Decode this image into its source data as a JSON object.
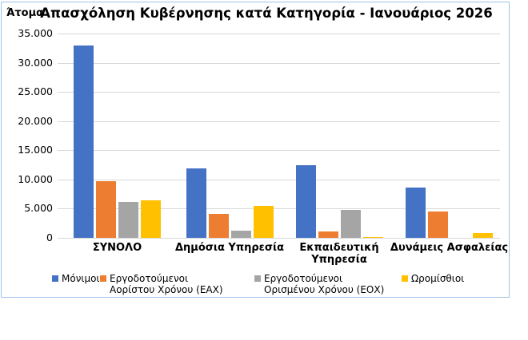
{
  "chart_data": {
    "type": "bar",
    "title": "Απασχόληση Κυβέρνησης κατά Κατηγορία - Ιανουάριος 2026",
    "y_axis_title": "Άτομα",
    "categories": [
      "ΣΥΝΟΛΟ",
      "Δημόσια Υπηρεσία",
      "Εκπαιδευτική Υπηρεσία",
      "Δυνάμεις Ασφαλείας"
    ],
    "categories_lines": [
      [
        "ΣΥΝΟΛΟ"
      ],
      [
        "Δημόσια Υπηρεσία"
      ],
      [
        "Εκπαιδευτική",
        "Υπηρεσία"
      ],
      [
        "Δυνάμεις Ασφαλείας"
      ]
    ],
    "series": [
      {
        "name": "Μόνιμοι",
        "label_lines": [
          "Μόνιμοι"
        ],
        "color": "#4472C4",
        "values": [
          33000,
          11900,
          12500,
          8600
        ]
      },
      {
        "name": "Εργοδοτούμενοι Αορίστου Χρόνου (ΕΑΧ)",
        "label_lines": [
          "Εργοδοτούμενοι",
          "Αορίστου Χρόνου (ΕΑΧ)"
        ],
        "color": "#ED7D31",
        "values": [
          9700,
          4100,
          1100,
          4500
        ]
      },
      {
        "name": "Εργοδοτούμενοι Ορισμένου Χρόνου (ΕΟΧ)",
        "label_lines": [
          "Εργοδοτούμενοι",
          "Ορισμένου Χρόνου (ΕΟΧ)"
        ],
        "color": "#A5A5A5",
        "values": [
          6100,
          1300,
          4800,
          0
        ]
      },
      {
        "name": "Ωρομίσθιοι",
        "label_lines": [
          "Ωρομίσθιοι"
        ],
        "color": "#FFC000",
        "values": [
          6500,
          5500,
          200,
          800
        ]
      }
    ],
    "ylim": [
      0,
      35000
    ],
    "ytick_step": 5000,
    "ytick_labels_top_to_bottom": [
      "35.000",
      "30.000",
      "25.000",
      "20.000",
      "15.000",
      "10.000",
      "5.000",
      "0"
    ],
    "grid": true,
    "legend_position": "bottom",
    "colors": {
      "frame_border": "#9DC3E6",
      "gridline": "#D9D9D9",
      "title_text": "#000000",
      "axis_text": "#000000"
    }
  }
}
